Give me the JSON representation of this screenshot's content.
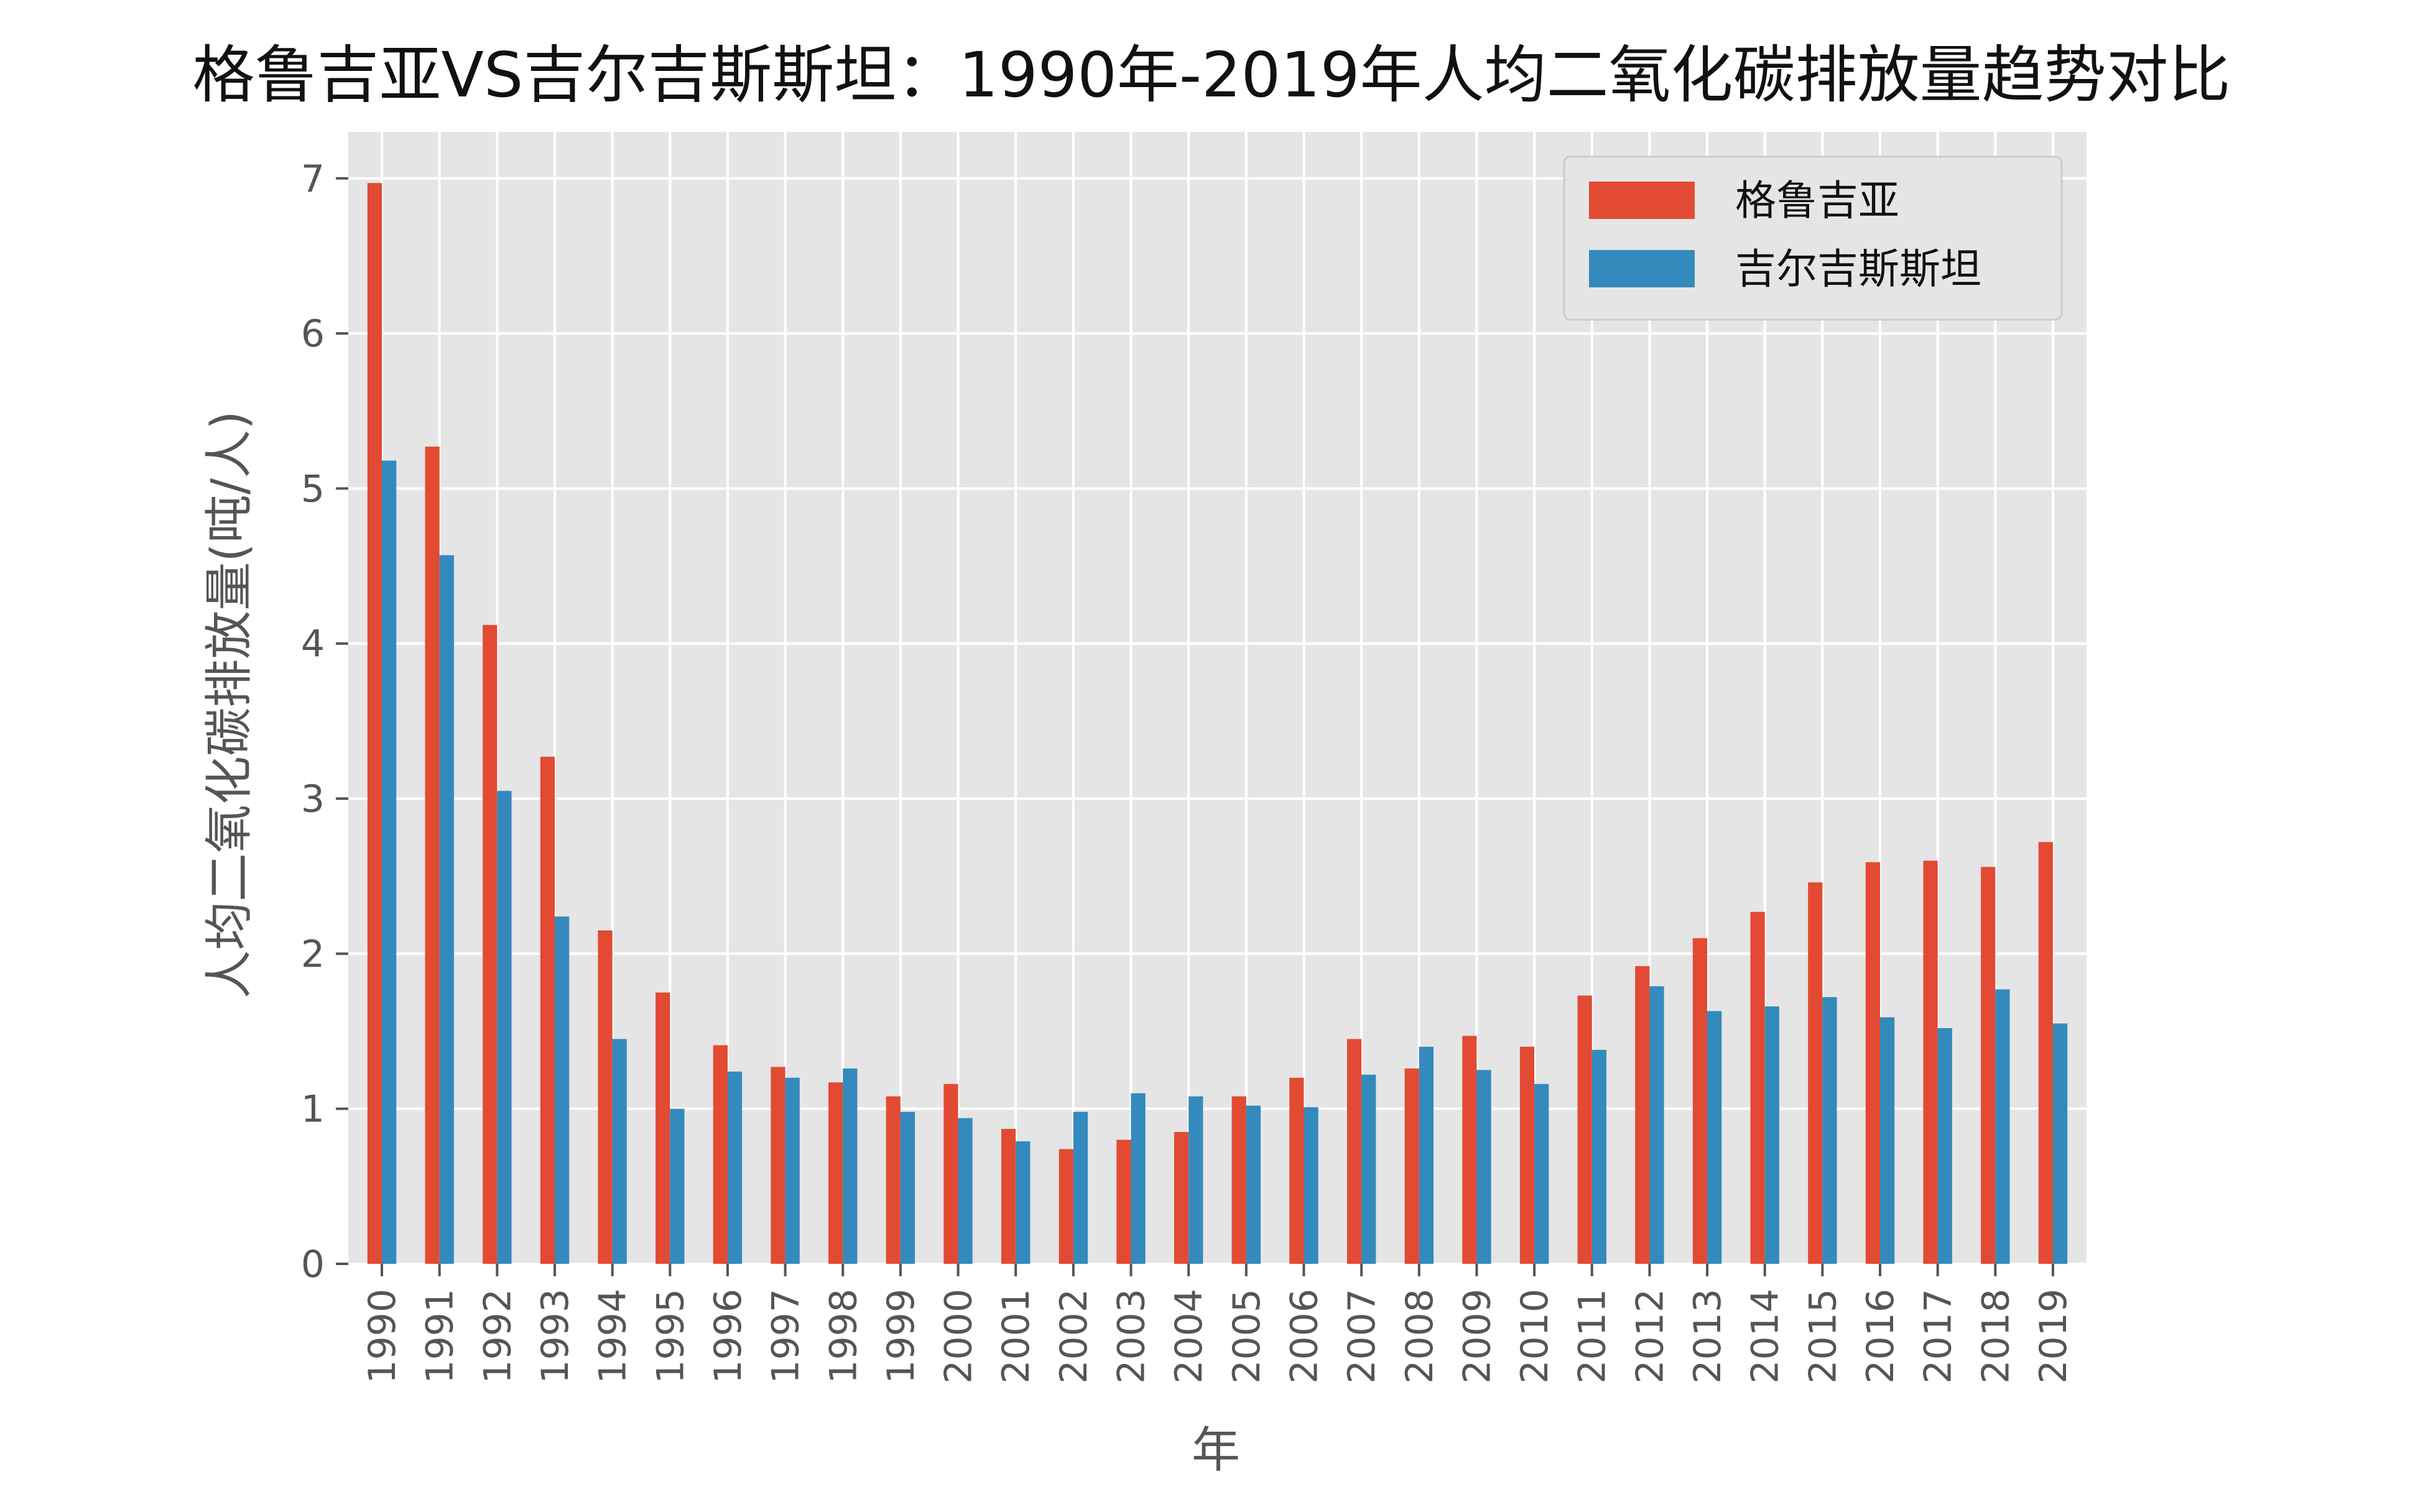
{
  "chart_data": {
    "type": "bar",
    "title": "格鲁吉亚VS吉尔吉斯斯坦：1990年-2019年人均二氧化碳排放量趋势对比",
    "xlabel": "年",
    "ylabel": "人均二氧化碳排放量(吨/人)",
    "ylim": [
      0,
      7.3
    ],
    "yticks": [
      0,
      1,
      2,
      3,
      4,
      5,
      6,
      7
    ],
    "grid": true,
    "legend_position": "top-right",
    "categories": [
      "1990",
      "1991",
      "1992",
      "1993",
      "1994",
      "1995",
      "1996",
      "1997",
      "1998",
      "1999",
      "2000",
      "2001",
      "2002",
      "2003",
      "2004",
      "2005",
      "2006",
      "2007",
      "2008",
      "2009",
      "2010",
      "2011",
      "2012",
      "2013",
      "2014",
      "2015",
      "2016",
      "2017",
      "2018",
      "2019"
    ],
    "series": [
      {
        "name": "格鲁吉亚",
        "color": "#E24A33",
        "values": [
          6.97,
          5.27,
          4.12,
          3.27,
          2.15,
          1.75,
          1.41,
          1.27,
          1.17,
          1.08,
          1.16,
          0.87,
          0.74,
          0.8,
          0.85,
          1.08,
          1.2,
          1.45,
          1.26,
          1.47,
          1.4,
          1.73,
          1.92,
          2.1,
          2.27,
          2.46,
          2.59,
          2.6,
          2.56,
          2.72
        ]
      },
      {
        "name": "吉尔吉斯斯坦",
        "color": "#348ABD",
        "values": [
          5.18,
          4.57,
          3.05,
          2.24,
          1.45,
          1.0,
          1.24,
          1.2,
          1.26,
          0.98,
          0.94,
          0.79,
          0.98,
          1.1,
          1.08,
          1.02,
          1.01,
          1.22,
          1.4,
          1.25,
          1.16,
          1.38,
          1.79,
          1.63,
          1.66,
          1.72,
          1.59,
          1.52,
          1.77,
          1.55
        ]
      }
    ]
  },
  "colors": {
    "plot_background": "#E5E5E5",
    "grid": "#FFFFFF",
    "legend_background": "#E5E5E5",
    "legend_border": "#CCCCCC"
  }
}
